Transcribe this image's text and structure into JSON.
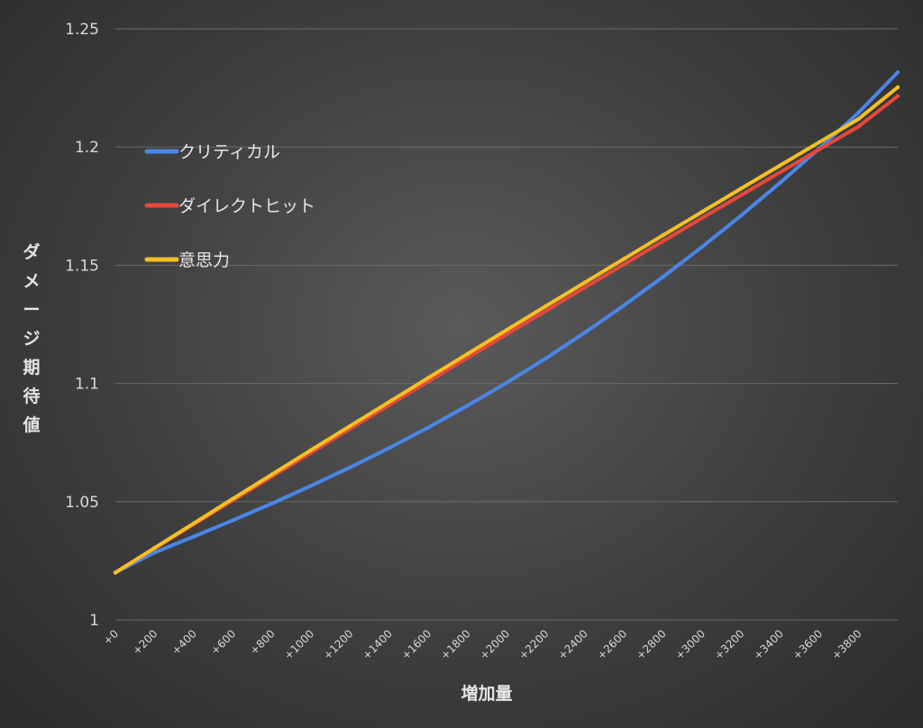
{
  "chart_data": {
    "type": "line",
    "xlabel": "増加量",
    "ylabel": "ダメージ期待値",
    "ylim": [
      1,
      1.25
    ],
    "xlim": [
      0,
      4000
    ],
    "y_ticks": [
      "1",
      "1.05",
      "1.1",
      "1.15",
      "1.2",
      "1.25"
    ],
    "x_ticks": [
      "+0",
      "+200",
      "+400",
      "+600",
      "+800",
      "+1000",
      "+1200",
      "+1400",
      "+1600",
      "+1800",
      "+2000",
      "+2200",
      "+2400",
      "+2600",
      "+2800",
      "+3000",
      "+3200",
      "+3400",
      "+3600",
      "+3800"
    ],
    "grid": "horizontal",
    "legend_position": "top-left",
    "x": [
      0,
      200,
      400,
      600,
      800,
      1000,
      1200,
      1400,
      1600,
      1800,
      2000,
      2200,
      2400,
      2600,
      2800,
      3000,
      3200,
      3400,
      3600,
      3800,
      4000
    ],
    "series": [
      {
        "name": "クリティカル",
        "color": "#4a86e8",
        "values": [
          1.02,
          1.0285,
          1.0352,
          1.0421,
          1.0492,
          1.0567,
          1.0645,
          1.0727,
          1.0814,
          1.0906,
          1.1003,
          1.1106,
          1.1215,
          1.133,
          1.1451,
          1.1578,
          1.1711,
          1.185,
          1.1995,
          1.2146,
          1.2316
        ]
      },
      {
        "name": "ダイレクトヒット",
        "color": "#e8473b",
        "values": [
          1.02,
          1.0302,
          1.0404,
          1.0505,
          1.0606,
          1.0707,
          1.0808,
          1.0909,
          1.1009,
          1.1109,
          1.1208,
          1.1307,
          1.1406,
          1.1504,
          1.1602,
          1.17,
          1.1797,
          1.1894,
          1.1991,
          1.2087,
          1.2216
        ]
      },
      {
        "name": "意思力",
        "color": "#f5c024",
        "values": [
          1.02,
          1.0304,
          1.0408,
          1.0512,
          1.0615,
          1.0718,
          1.082,
          1.0922,
          1.1024,
          1.1125,
          1.1226,
          1.1327,
          1.1427,
          1.1527,
          1.1627,
          1.1726,
          1.1825,
          1.1923,
          1.2021,
          1.2119,
          1.2253
        ]
      }
    ]
  }
}
